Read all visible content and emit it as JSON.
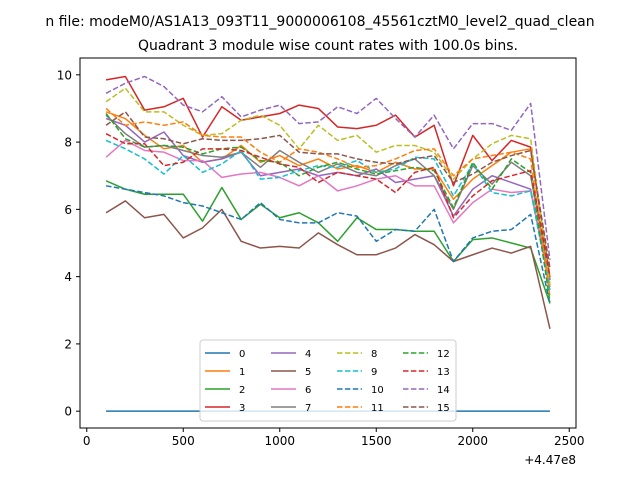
{
  "figure": {
    "suptitle": "n file: modeM0/AS1A13_093T11_9000006108_45561cztM0_level2_quad_clean",
    "offset_label": "+4.47e8"
  },
  "chart_data": {
    "type": "line",
    "title": "Quadrant 3 module wise count rates with 100.0s bins.",
    "xlabel": "",
    "ylabel": "",
    "x_offset": 447000000,
    "xlim": [
      -35,
      2535
    ],
    "ylim": [
      -0.5,
      10.5
    ],
    "xticks": [
      0,
      500,
      1000,
      1500,
      2000,
      2500
    ],
    "yticks": [
      0,
      2,
      4,
      6,
      8,
      10
    ],
    "grid": false,
    "legend": {
      "placement": "bottom-center",
      "ncol": 4
    },
    "x": [
      100,
      200,
      300,
      400,
      500,
      600,
      700,
      800,
      900,
      1000,
      1100,
      1200,
      1300,
      1400,
      1500,
      1600,
      1700,
      1800,
      1900,
      2000,
      2100,
      2200,
      2300,
      2400
    ],
    "series": [
      {
        "name": "0",
        "color": "#1f77b4",
        "dash": "solid",
        "values": [
          0,
          0,
          0,
          0,
          0,
          0,
          0,
          0,
          0,
          0,
          0,
          0,
          0,
          0,
          0,
          0,
          0,
          0,
          0,
          0,
          0,
          0,
          0,
          0
        ]
      },
      {
        "name": "1",
        "color": "#ff7f0e",
        "dash": "solid",
        "values": [
          8.9,
          8.7,
          8.2,
          7.8,
          7.9,
          7.4,
          7.5,
          7.9,
          7.4,
          7.6,
          7.3,
          7.5,
          7.2,
          7.3,
          7.1,
          7.4,
          7.2,
          7.2,
          6.3,
          6.9,
          7.3,
          7.7,
          7.8,
          4.0
        ]
      },
      {
        "name": "2",
        "color": "#2ca02c",
        "dash": "solid",
        "values": [
          6.85,
          6.6,
          6.45,
          6.45,
          6.45,
          5.65,
          6.65,
          5.7,
          6.15,
          5.75,
          5.9,
          5.6,
          5.05,
          5.75,
          5.4,
          5.4,
          5.35,
          5.35,
          4.45,
          5.1,
          5.15,
          5.0,
          4.85,
          3.2
        ]
      },
      {
        "name": "3",
        "color": "#d62728",
        "dash": "solid",
        "values": [
          9.85,
          9.95,
          8.95,
          9.05,
          9.3,
          8.15,
          9.05,
          8.65,
          8.75,
          8.85,
          9.1,
          9.0,
          8.45,
          8.4,
          8.5,
          8.8,
          8.15,
          8.5,
          6.7,
          8.2,
          7.45,
          8.05,
          7.85,
          3.9
        ]
      },
      {
        "name": "4",
        "color": "#9467bd",
        "dash": "solid",
        "values": [
          8.7,
          8.5,
          8.0,
          8.3,
          7.6,
          7.4,
          7.5,
          7.7,
          7.0,
          7.1,
          7.2,
          7.0,
          7.1,
          7.0,
          7.2,
          6.8,
          6.9,
          7.0,
          5.8,
          6.6,
          7.0,
          6.8,
          6.6,
          3.7
        ]
      },
      {
        "name": "5",
        "color": "#8c564b",
        "dash": "solid",
        "values": [
          5.9,
          6.25,
          5.75,
          5.85,
          5.15,
          5.45,
          6.0,
          5.05,
          4.85,
          4.9,
          4.85,
          5.3,
          4.95,
          4.65,
          4.65,
          4.85,
          5.25,
          4.95,
          4.45,
          4.65,
          4.85,
          4.7,
          4.9,
          2.45
        ]
      },
      {
        "name": "6",
        "color": "#e377c2",
        "dash": "solid",
        "values": [
          7.55,
          8.05,
          7.75,
          7.7,
          7.45,
          7.45,
          6.95,
          7.05,
          7.1,
          6.95,
          6.7,
          7.0,
          6.55,
          6.7,
          6.9,
          7.0,
          6.7,
          6.7,
          5.6,
          6.2,
          6.6,
          6.5,
          6.55,
          3.7
        ]
      },
      {
        "name": "7",
        "color": "#7f7f7f",
        "dash": "solid",
        "values": [
          8.8,
          8.25,
          7.85,
          7.9,
          7.75,
          7.6,
          7.55,
          7.7,
          7.25,
          7.75,
          7.4,
          7.1,
          7.35,
          7.1,
          7.0,
          7.3,
          7.5,
          7.0,
          6.0,
          7.3,
          6.75,
          7.4,
          7.0,
          3.9
        ]
      },
      {
        "name": "8",
        "color": "#bcbd22",
        "dash": "dashed",
        "values": [
          9.2,
          9.6,
          8.9,
          8.9,
          8.5,
          8.2,
          8.25,
          8.65,
          8.8,
          8.5,
          7.8,
          8.5,
          8.05,
          8.2,
          7.7,
          7.9,
          7.9,
          7.7,
          6.9,
          7.5,
          7.95,
          8.2,
          8.1,
          3.75
        ]
      },
      {
        "name": "9",
        "color": "#17becf",
        "dash": "dashed",
        "values": [
          8.05,
          7.8,
          7.5,
          7.05,
          7.6,
          7.1,
          7.35,
          7.75,
          6.9,
          6.95,
          7.15,
          7.3,
          7.25,
          7.45,
          7.1,
          7.2,
          7.55,
          7.5,
          6.4,
          7.35,
          6.5,
          6.4,
          6.55,
          3.6
        ]
      },
      {
        "name": "10",
        "color": "#1f77b4",
        "dash": "dashed",
        "values": [
          6.7,
          6.6,
          6.5,
          6.4,
          6.2,
          6.1,
          5.9,
          5.7,
          6.2,
          5.7,
          5.6,
          5.6,
          5.9,
          5.8,
          5.05,
          5.4,
          5.35,
          6.0,
          4.45,
          5.15,
          5.35,
          5.4,
          5.85,
          3.2
        ]
      },
      {
        "name": "11",
        "color": "#ff7f0e",
        "dash": "dashed",
        "values": [
          9.0,
          8.5,
          8.6,
          8.5,
          8.6,
          8.2,
          8.15,
          8.15,
          7.7,
          7.4,
          7.8,
          7.7,
          7.5,
          7.25,
          7.3,
          7.5,
          7.75,
          7.8,
          7.0,
          7.5,
          7.6,
          7.7,
          7.5,
          3.4
        ]
      },
      {
        "name": "12",
        "color": "#2ca02c",
        "dash": "dashed",
        "values": [
          8.85,
          8.1,
          7.85,
          7.9,
          7.85,
          7.65,
          7.8,
          7.85,
          7.45,
          7.4,
          7.0,
          7.25,
          7.4,
          7.2,
          7.05,
          7.15,
          7.25,
          7.15,
          6.05,
          7.4,
          6.6,
          7.5,
          7.1,
          3.25
        ]
      },
      {
        "name": "13",
        "color": "#d62728",
        "dash": "dashed",
        "values": [
          8.25,
          7.95,
          7.95,
          7.3,
          7.4,
          7.8,
          7.8,
          7.75,
          7.55,
          7.35,
          7.25,
          6.8,
          7.1,
          7.0,
          6.9,
          6.5,
          7.1,
          7.25,
          5.75,
          6.4,
          6.85,
          7.0,
          7.15,
          4.0
        ]
      },
      {
        "name": "14",
        "color": "#9467bd",
        "dash": "dashed",
        "values": [
          9.45,
          9.75,
          9.95,
          9.65,
          9.1,
          8.9,
          9.35,
          8.75,
          8.95,
          9.1,
          8.55,
          8.6,
          9.05,
          8.85,
          9.3,
          8.7,
          8.15,
          8.8,
          7.8,
          8.55,
          8.55,
          8.35,
          9.15,
          4.5
        ]
      },
      {
        "name": "15",
        "color": "#8c564b",
        "dash": "dashed",
        "values": [
          8.5,
          8.9,
          8.15,
          8.1,
          7.95,
          8.1,
          8.05,
          8.05,
          8.1,
          8.2,
          7.7,
          7.65,
          7.65,
          7.5,
          7.4,
          7.35,
          7.5,
          7.6,
          6.8,
          7.05,
          7.4,
          7.6,
          7.75,
          4.25
        ]
      }
    ]
  }
}
